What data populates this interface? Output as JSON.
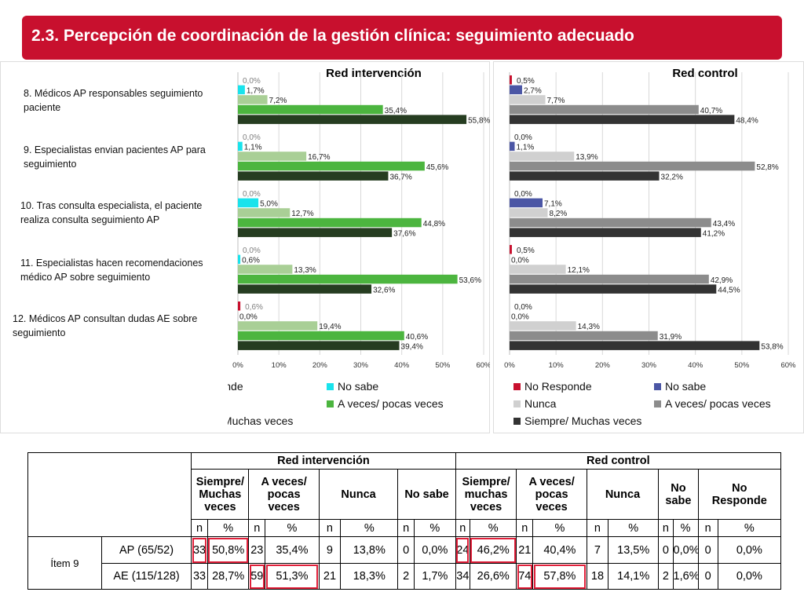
{
  "title": "2.3. Percepción de coordinación de la gestión clínica: seguimiento adecuado",
  "colors": {
    "banner": "#c8102e",
    "highlight": "#e0203a"
  },
  "questions": [
    "8. Médicos AP responsables seguimiento paciente",
    "9. Especialistas envian pacientes AP para seguimiento",
    "10. Tras consulta especialista, el paciente realiza consulta seguimiento  AP",
    "11. Especialistas hacen recomendaciones médico AP sobre seguimiento",
    "12. Médicos AP consultan dudas AE   sobre seguimiento"
  ],
  "chart_data": [
    {
      "type": "bar",
      "orientation": "horizontal",
      "title": "Red intervención",
      "xlim": [
        0,
        60
      ],
      "xticks": [
        "0%",
        "10%",
        "20%",
        "30%",
        "40%",
        "50%",
        "60%"
      ],
      "legend_position": "bottom",
      "series": [
        {
          "name": "No Responde",
          "color": "#c8102e",
          "values": [
            0,
            0,
            0,
            0,
            0.6
          ],
          "labels": [
            "0,0%",
            "0,0%",
            "0,0%",
            "0,0%",
            "0,6%"
          ]
        },
        {
          "name": "No sabe",
          "color": "#19e3ec",
          "values": [
            1.7,
            1.1,
            5.0,
            0.6,
            0
          ],
          "labels": [
            "1,7%",
            "1,1%",
            "5,0%",
            "0,6%",
            "0,0%"
          ]
        },
        {
          "name": "Nunca",
          "color": "#a9cf96",
          "values": [
            7.2,
            16.7,
            12.7,
            13.3,
            19.4
          ],
          "labels": [
            "7,2%",
            "16,7%",
            "12,7%",
            "13,3%",
            "19,4%"
          ]
        },
        {
          "name": "A veces/ pocas veces",
          "color": "#4cb53f",
          "values": [
            35.4,
            45.6,
            44.8,
            53.6,
            40.6
          ],
          "labels": [
            "35,4%",
            "45,6%",
            "44,8%",
            "53,6%",
            "40,6%"
          ]
        },
        {
          "name": "Siempre/ Muchas veces",
          "color": "#263d21",
          "values": [
            55.8,
            36.7,
            37.6,
            32.6,
            39.4
          ],
          "labels": [
            "55,8%",
            "36,7%",
            "37,6%",
            "32,6%",
            "39,4%"
          ]
        }
      ]
    },
    {
      "type": "bar",
      "orientation": "horizontal",
      "title": "Red control",
      "xlim": [
        0,
        60
      ],
      "xticks": [
        "0%",
        "10%",
        "20%",
        "30%",
        "40%",
        "50%",
        "60%"
      ],
      "legend_position": "bottom",
      "series": [
        {
          "name": "No Responde",
          "color": "#c8102e",
          "values": [
            0.5,
            0,
            0,
            0.5,
            0
          ],
          "labels": [
            "0,5%",
            "0,0%",
            "0,0%",
            "0,5%",
            "0,0%"
          ]
        },
        {
          "name": "No sabe",
          "color": "#4b56a5",
          "values": [
            2.7,
            1.1,
            7.1,
            0,
            0
          ],
          "labels": [
            "2,7%",
            "1,1%",
            "7,1%",
            "0,0%",
            "0,0%"
          ]
        },
        {
          "name": "Nunca",
          "color": "#d0d0d0",
          "values": [
            7.7,
            13.9,
            8.2,
            12.1,
            14.3
          ],
          "labels": [
            "7,7%",
            "13,9%",
            "8,2%",
            "12,1%",
            "14,3%"
          ]
        },
        {
          "name": "A veces/ pocas veces",
          "color": "#8c8c8c",
          "values": [
            40.7,
            52.8,
            43.4,
            42.9,
            31.9
          ],
          "labels": [
            "40,7%",
            "52,8%",
            "43,4%",
            "42,9%",
            "31,9%"
          ]
        },
        {
          "name": "Siempre/ Muchas veces",
          "color": "#333333",
          "values": [
            48.4,
            32.2,
            41.2,
            44.5,
            53.8
          ],
          "labels": [
            "48,4%",
            "32,2%",
            "41,2%",
            "44,5%",
            "53,8%"
          ]
        }
      ]
    }
  ],
  "table": {
    "group_headers": [
      "Red intervención",
      "Red control"
    ],
    "col_headers": [
      [
        "Siempre/",
        "Muchas",
        "veces"
      ],
      [
        "A veces/",
        "pocas",
        "veces"
      ],
      [
        "Nunca"
      ],
      [
        "No sabe"
      ],
      [
        "Siempre/",
        "muchas",
        "veces"
      ],
      [
        "A veces/",
        "pocas",
        "veces"
      ],
      [
        "Nunca"
      ],
      [
        "No",
        "sabe"
      ],
      [
        "No",
        "Responde"
      ]
    ],
    "n_label": "n",
    "pct_label": "%",
    "item_label": "Ítem 9",
    "rows": [
      {
        "label": "AP (65/52)",
        "cells": [
          "33",
          "50,8%",
          "23",
          "35,4%",
          "9",
          "13,8%",
          "0",
          "0,0%",
          "24",
          "46,2%",
          "21",
          "40,4%",
          "7",
          "13,5%",
          "0",
          "0,0%",
          "0",
          "0,0%"
        ],
        "highlight": [
          0,
          1,
          8,
          9
        ]
      },
      {
        "label": "AE (115/128)",
        "cells": [
          "33",
          "28,7%",
          "59",
          "51,3%",
          "21",
          "18,3%",
          "2",
          "1,7%",
          "34",
          "26,6%",
          "74",
          "57,8%",
          "18",
          "14,1%",
          "2",
          "1,6%",
          "0",
          "0,0%"
        ],
        "highlight": [
          2,
          3,
          10,
          11
        ]
      }
    ]
  }
}
